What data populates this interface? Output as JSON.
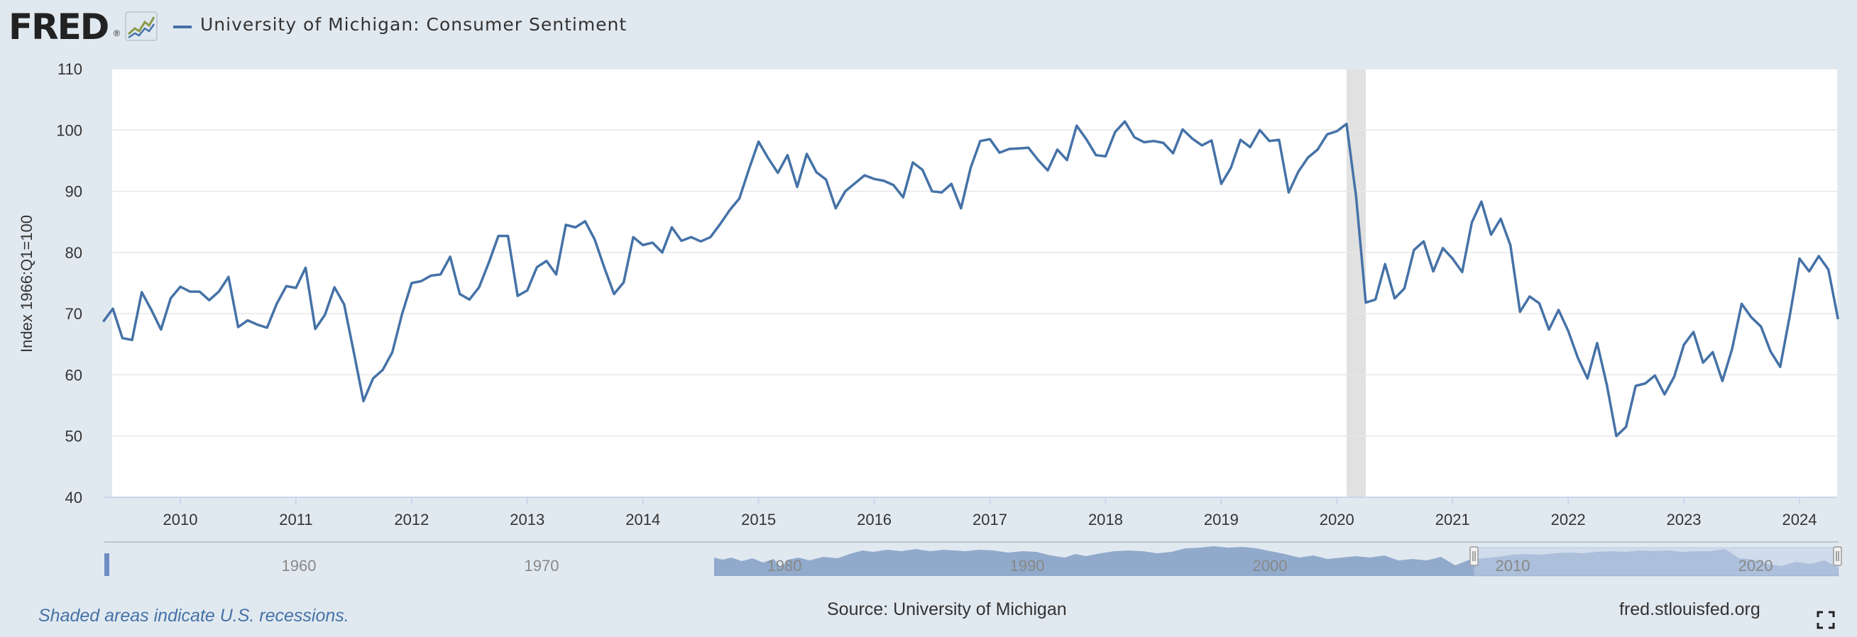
{
  "header": {
    "logo_text": "FRED",
    "logo_mark": "®",
    "logo_icon": "line-chart-icon",
    "legend_label": "University of Michigan: Consumer Sentiment"
  },
  "footer": {
    "recession_note": "Shaded areas indicate U.S. recessions.",
    "source": "Source: University of Michigan",
    "site": "fred.stlouisfed.org",
    "fullscreen_icon": "fullscreen-icon"
  },
  "colors": {
    "series": "#4572a7",
    "background": "#e1e9f0",
    "plot": "#ffffff",
    "recession": "#e1e1e1",
    "navigator": "#8ca6c9",
    "navigator_selected": "#c3d1e8"
  },
  "chart_data": {
    "type": "line",
    "title": "",
    "ylabel": "Index 1966:Q1=100",
    "xlabel": "",
    "ylim": [
      40,
      110
    ],
    "yticks": [
      40,
      50,
      60,
      70,
      80,
      90,
      100,
      110
    ],
    "xticks": [
      "2010",
      "2011",
      "2012",
      "2013",
      "2014",
      "2015",
      "2016",
      "2017",
      "2018",
      "2019",
      "2020",
      "2021",
      "2022",
      "2023",
      "2024"
    ],
    "grid": true,
    "legend_position": "top-left",
    "recessions": [
      [
        "2020-02",
        "2020-04"
      ]
    ],
    "navigator_ticks": [
      "1960",
      "1970",
      "1980",
      "1990",
      "2000",
      "2010",
      "2020"
    ],
    "series": [
      {
        "name": "University of Michigan: Consumer Sentiment",
        "start": "2009-05",
        "frequency": "monthly",
        "values": [
          68.7,
          70.8,
          66.0,
          65.7,
          73.5,
          70.6,
          67.4,
          72.5,
          74.4,
          73.6,
          73.6,
          72.2,
          73.6,
          76.0,
          67.8,
          68.9,
          68.2,
          67.7,
          71.6,
          74.5,
          74.2,
          77.5,
          67.5,
          69.8,
          74.3,
          71.5,
          63.7,
          55.7,
          59.4,
          60.8,
          63.7,
          69.9,
          75.0,
          75.3,
          76.2,
          76.4,
          79.3,
          73.2,
          72.3,
          74.3,
          78.3,
          82.7,
          82.7,
          72.9,
          73.8,
          77.6,
          78.6,
          76.4,
          84.5,
          84.1,
          85.1,
          82.1,
          77.5,
          73.2,
          75.1,
          82.5,
          81.2,
          81.6,
          80.0,
          84.1,
          81.9,
          82.5,
          81.8,
          82.5,
          84.6,
          86.9,
          88.8,
          93.6,
          98.1,
          95.4,
          93.0,
          95.9,
          90.7,
          96.1,
          93.1,
          91.9,
          87.2,
          90.0,
          91.3,
          92.6,
          92.0,
          91.7,
          91.0,
          89.0,
          94.7,
          93.5,
          90.0,
          89.8,
          91.2,
          87.2,
          93.8,
          98.2,
          98.5,
          96.3,
          96.9,
          97.0,
          97.1,
          95.1,
          93.4,
          96.8,
          95.1,
          100.7,
          98.5,
          95.9,
          95.7,
          99.7,
          101.4,
          98.8,
          98.0,
          98.2,
          97.9,
          96.2,
          100.1,
          98.6,
          97.5,
          98.3,
          91.2,
          93.8,
          98.4,
          97.2,
          100.0,
          98.2,
          98.4,
          89.8,
          93.2,
          95.5,
          96.8,
          99.3,
          99.8,
          101.0,
          89.1,
          71.8,
          72.3,
          78.1,
          72.5,
          74.1,
          80.4,
          81.8,
          76.9,
          80.7,
          79.0,
          76.8,
          84.9,
          88.3,
          82.9,
          85.5,
          81.2,
          70.3,
          72.8,
          71.7,
          67.4,
          70.6,
          67.2,
          62.8,
          59.4,
          65.2,
          58.4,
          50.0,
          51.5,
          58.2,
          58.6,
          59.9,
          56.8,
          59.7,
          64.9,
          67.0,
          62.0,
          63.7,
          59.0,
          64.2,
          71.6,
          69.4,
          67.9,
          63.8,
          61.3,
          69.7,
          79.0,
          76.9,
          79.4,
          77.2,
          69.1
        ]
      }
    ]
  }
}
